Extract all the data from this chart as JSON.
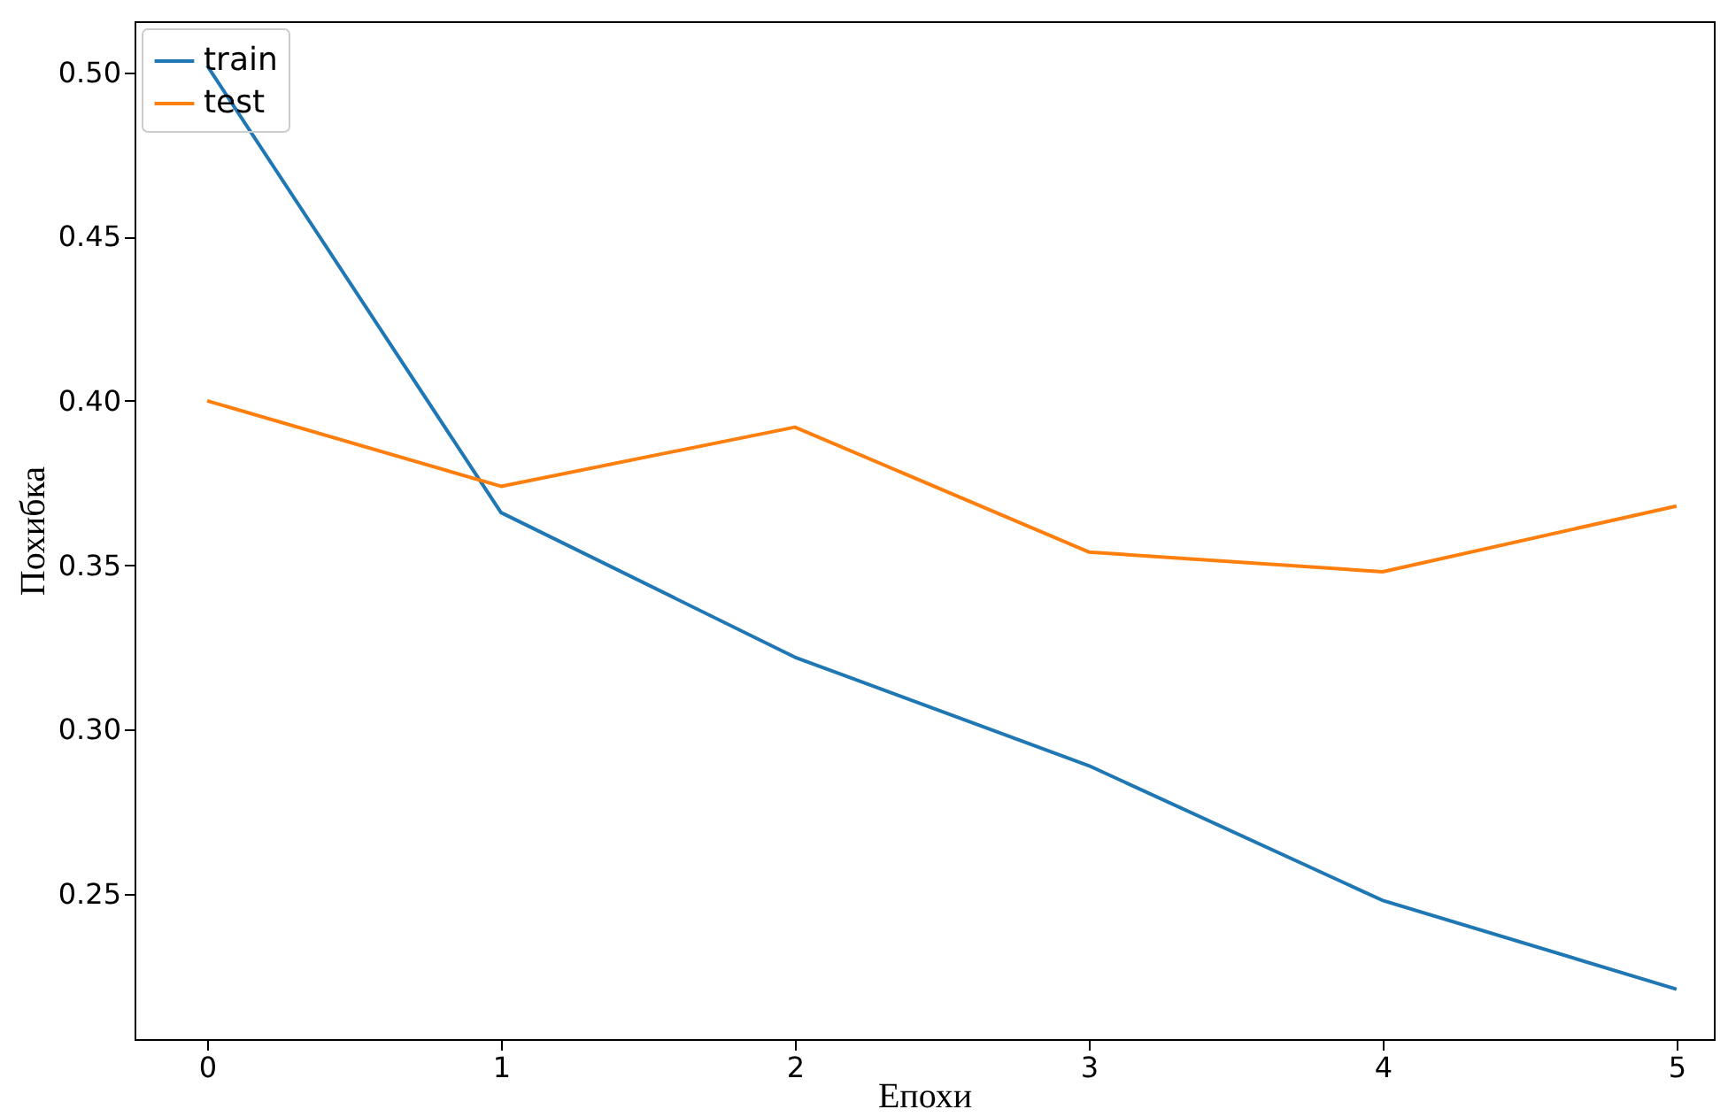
{
  "chart_data": {
    "type": "line",
    "xlabel": "Епохи",
    "ylabel": "Похибка",
    "x": [
      0,
      1,
      2,
      3,
      4,
      5
    ],
    "xlim": [
      -0.247,
      5.127
    ],
    "xticks": [
      0,
      1,
      2,
      3,
      4,
      5
    ],
    "ylim": [
      0.2058,
      0.5155
    ],
    "yticks": [
      {
        "value": 0.25,
        "label": "0.25"
      },
      {
        "value": 0.3,
        "label": "0.30"
      },
      {
        "value": 0.35,
        "label": "0.35"
      },
      {
        "value": 0.4,
        "label": "0.40"
      },
      {
        "value": 0.45,
        "label": "0.45"
      },
      {
        "value": 0.5,
        "label": "0.50"
      }
    ],
    "series": [
      {
        "name": "train",
        "color": "#1f77b4",
        "values": [
          0.502,
          0.366,
          0.322,
          0.289,
          0.248,
          0.221
        ]
      },
      {
        "name": "test",
        "color": "#ff7f0e",
        "values": [
          0.4,
          0.374,
          0.392,
          0.354,
          0.348,
          0.368
        ]
      }
    ],
    "legend": "top left",
    "grid": false,
    "marker": "none",
    "line_style": "solid"
  }
}
